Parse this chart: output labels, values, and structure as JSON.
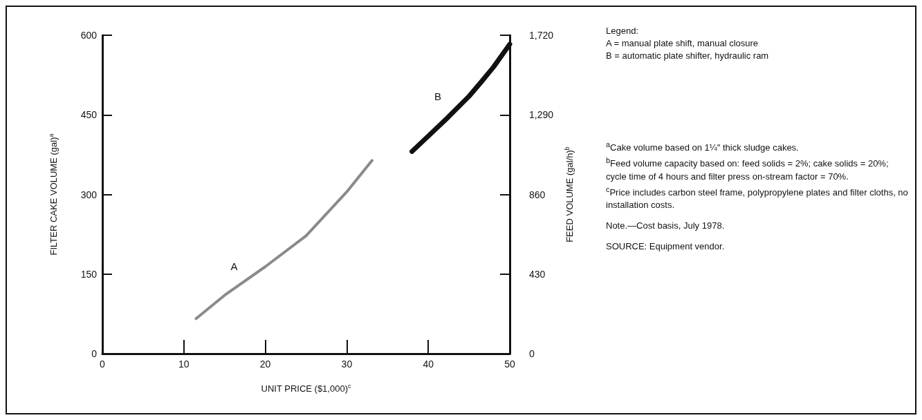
{
  "chart_data": {
    "type": "line",
    "xlabel": "UNIT PRICE ($1,000)$^{c}$",
    "ylabel": "FILTER CAKE VOLUME (gal)$^{a}$",
    "y2label": "FEED VOLUME (gal/h)$^{b}$",
    "xlim": [
      0,
      50
    ],
    "xticks": [
      0,
      10,
      20,
      30,
      40,
      50
    ],
    "ylim": [
      0,
      600
    ],
    "yticks": [
      0,
      150,
      300,
      450,
      600
    ],
    "y2lim": [
      0,
      1720
    ],
    "y2ticks": [
      0,
      430,
      860,
      {
        "value": 1290,
        "label": "1,290"
      },
      {
        "value": 1720,
        "label": "1,720"
      }
    ],
    "grid": false,
    "legend": false,
    "marker": "none",
    "line_style": "solid",
    "series": [
      {
        "name": "A",
        "color": "#8a8a8a",
        "x": [
          11.5,
          15,
          20,
          25,
          30,
          33.1
        ],
        "values": [
          66,
          110,
          164,
          222,
          305,
          364
        ]
      },
      {
        "name": "B",
        "color": "#111111",
        "x": [
          38,
          40,
          42.4,
          45,
          46.5,
          48,
          50
        ],
        "values": [
          381,
          410,
          445,
          485,
          512,
          540,
          583
        ]
      }
    ],
    "annotations": [
      "Legend:",
      "A = manual plate shift, manual closure",
      "B = automatic plate shifter, hydraulic ram",
      "$^{a}$Cake volume based on 1¼″ thick sludge cakes.",
      "$^{b}$Feed volume capacity based on: feed solids = 2%; cake solids = 20%; cycle time of 4 hours and filter press on-stream factor = 70%.",
      "$^{c}$Price includes carbon steel frame, polypropylene plates and filter cloths, no installation costs.",
      "Note.—Cost basis, July 1978.",
      "SOURCE: Equipment vendor."
    ]
  }
}
